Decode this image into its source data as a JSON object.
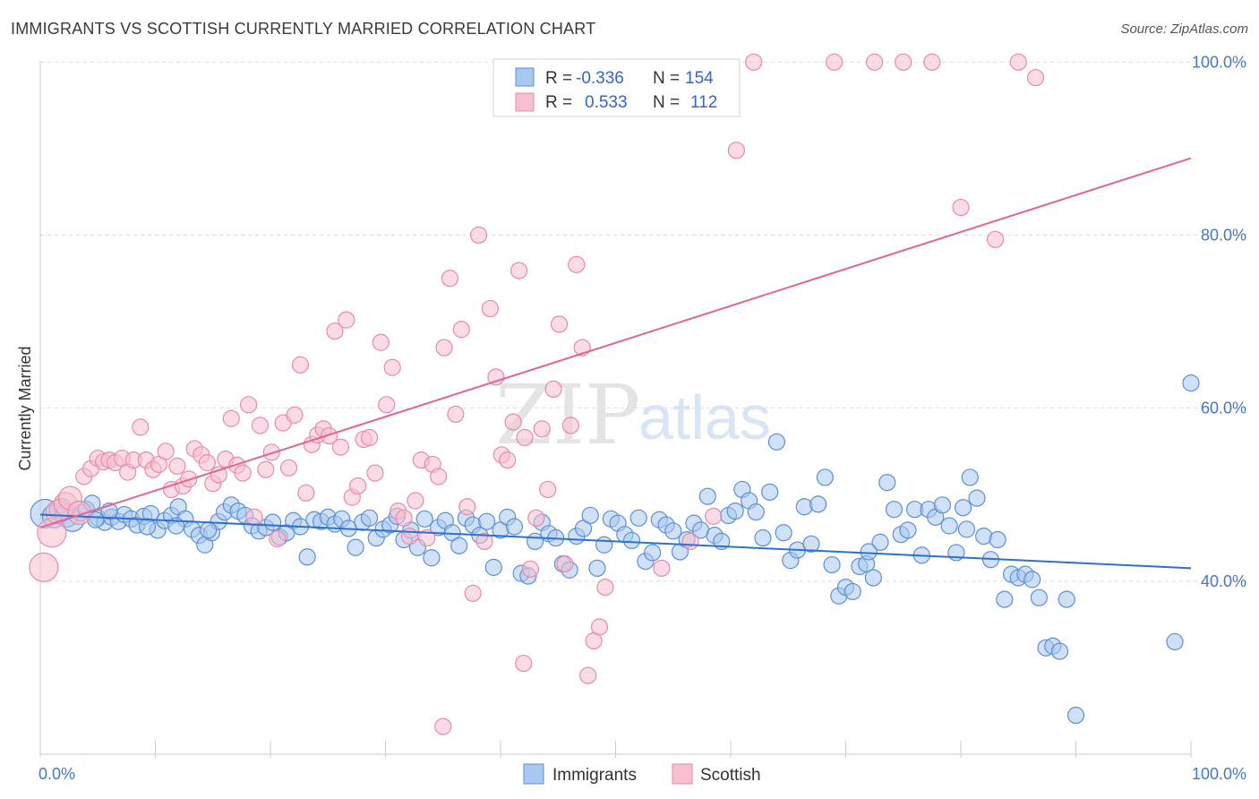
{
  "title": "IMMIGRANTS VS SCOTTISH CURRENTLY MARRIED CORRELATION CHART",
  "source": "Source: ZipAtlas.com",
  "watermark": {
    "part1": "ZIP",
    "part2": "atlas"
  },
  "colors": {
    "immigrants_fill": "#a9c8f0",
    "immigrants_stroke": "#5b8fd6",
    "immigrants_line": "#2f6fcf",
    "scottish_fill": "#f7bfd0",
    "scottish_stroke": "#e88aa8",
    "scottish_line": "#e0668e",
    "tick_label": "#4477cc",
    "grid": "#dddddd"
  },
  "legend": {
    "rows": [
      {
        "r_label": "R =",
        "r_value": "-0.336",
        "n_label": "N =",
        "n_value": "154"
      },
      {
        "r_label": "R =",
        "r_value": "0.533",
        "n_label": "N =",
        "n_value": "112"
      }
    ]
  },
  "bottom_legend": [
    "Immigrants",
    "Scottish"
  ],
  "chart_data": {
    "type": "scatter",
    "title": "IMMIGRANTS VS SCOTTISH CURRENTLY MARRIED CORRELATION CHART",
    "xlabel": "",
    "ylabel": "Currently Married",
    "xlim": [
      0,
      100
    ],
    "ylim": [
      20,
      102
    ],
    "x_tick_labels": [
      "0.0%",
      "100.0%"
    ],
    "y_ticks": [
      40,
      60,
      80,
      100
    ],
    "y_tick_labels": [
      "40.0%",
      "60.0%",
      "80.0%",
      "100.0%"
    ],
    "grid": true,
    "legend_position": "top-center",
    "series": [
      {
        "name": "Immigrants",
        "r": -0.336,
        "n": 154,
        "trend": {
          "x": [
            0,
            100
          ],
          "y": [
            47.7,
            41.5
          ]
        },
        "points": [
          [
            0.4,
            47.8
          ],
          [
            1.2,
            47.5
          ],
          [
            1.8,
            48.2
          ],
          [
            2.3,
            47.6
          ],
          [
            2.8,
            47.1
          ],
          [
            3.5,
            47.9
          ],
          [
            4.0,
            48.3
          ],
          [
            4.5,
            49.0
          ],
          [
            5.0,
            47.3
          ],
          [
            5.6,
            46.8
          ],
          [
            6.2,
            47.4
          ],
          [
            6.8,
            46.9
          ],
          [
            7.3,
            47.7
          ],
          [
            7.9,
            47.2
          ],
          [
            8.4,
            46.5
          ],
          [
            9.0,
            47.5
          ],
          [
            9.6,
            47.8
          ],
          [
            10.2,
            45.9
          ],
          [
            10.8,
            47.0
          ],
          [
            11.4,
            47.6
          ],
          [
            12.0,
            48.6
          ],
          [
            12.6,
            47.2
          ],
          [
            13.2,
            46.0
          ],
          [
            13.8,
            45.3
          ],
          [
            14.3,
            44.2
          ],
          [
            14.9,
            45.6
          ],
          [
            15.5,
            46.9
          ],
          [
            16.0,
            48.0
          ],
          [
            16.6,
            48.8
          ],
          [
            17.2,
            48.1
          ],
          [
            17.8,
            47.6
          ],
          [
            18.4,
            46.4
          ],
          [
            19.0,
            45.8
          ],
          [
            19.6,
            46.2
          ],
          [
            20.2,
            46.8
          ],
          [
            20.8,
            45.1
          ],
          [
            21.4,
            45.6
          ],
          [
            22.0,
            47.0
          ],
          [
            22.6,
            46.3
          ],
          [
            23.2,
            42.8
          ],
          [
            23.8,
            47.1
          ],
          [
            24.4,
            46.9
          ],
          [
            25.0,
            47.4
          ],
          [
            25.6,
            46.6
          ],
          [
            26.2,
            47.2
          ],
          [
            26.8,
            46.1
          ],
          [
            27.4,
            43.9
          ],
          [
            28.0,
            46.8
          ],
          [
            28.6,
            47.3
          ],
          [
            29.2,
            45.0
          ],
          [
            29.8,
            46.0
          ],
          [
            30.4,
            46.5
          ],
          [
            31.0,
            47.5
          ],
          [
            31.6,
            44.8
          ],
          [
            32.2,
            45.9
          ],
          [
            32.8,
            43.9
          ],
          [
            33.4,
            47.2
          ],
          [
            34.0,
            42.7
          ],
          [
            34.6,
            46.2
          ],
          [
            35.2,
            47.0
          ],
          [
            35.8,
            45.6
          ],
          [
            36.4,
            44.1
          ],
          [
            37.0,
            47.3
          ],
          [
            37.6,
            46.5
          ],
          [
            38.2,
            45.3
          ],
          [
            38.8,
            46.9
          ],
          [
            39.4,
            41.6
          ],
          [
            40.0,
            45.9
          ],
          [
            40.6,
            47.4
          ],
          [
            41.2,
            46.3
          ],
          [
            41.8,
            40.9
          ],
          [
            42.4,
            40.6
          ],
          [
            43.0,
            44.6
          ],
          [
            43.6,
            46.8
          ],
          [
            44.2,
            45.5
          ],
          [
            44.8,
            45.0
          ],
          [
            45.4,
            42.0
          ],
          [
            46.0,
            41.3
          ],
          [
            46.6,
            45.2
          ],
          [
            47.2,
            46.1
          ],
          [
            47.8,
            47.6
          ],
          [
            48.4,
            41.5
          ],
          [
            49.0,
            44.2
          ],
          [
            49.6,
            47.2
          ],
          [
            50.2,
            46.7
          ],
          [
            50.8,
            45.4
          ],
          [
            51.4,
            44.7
          ],
          [
            52.0,
            47.3
          ],
          [
            52.6,
            42.3
          ],
          [
            53.2,
            43.3
          ],
          [
            53.8,
            47.1
          ],
          [
            54.4,
            46.5
          ],
          [
            55.0,
            45.8
          ],
          [
            55.6,
            43.4
          ],
          [
            56.2,
            44.8
          ],
          [
            56.8,
            46.7
          ],
          [
            57.4,
            45.9
          ],
          [
            58.0,
            49.8
          ],
          [
            58.6,
            45.3
          ],
          [
            59.2,
            44.6
          ],
          [
            59.8,
            47.6
          ],
          [
            60.4,
            48.1
          ],
          [
            61.0,
            50.6
          ],
          [
            61.6,
            49.3
          ],
          [
            62.2,
            48.0
          ],
          [
            62.8,
            45.0
          ],
          [
            63.4,
            50.3
          ],
          [
            64.0,
            56.1
          ],
          [
            64.6,
            45.6
          ],
          [
            65.2,
            42.4
          ],
          [
            65.8,
            43.6
          ],
          [
            66.4,
            48.6
          ],
          [
            67.0,
            44.3
          ],
          [
            67.6,
            48.9
          ],
          [
            68.2,
            52.0
          ],
          [
            68.8,
            41.9
          ],
          [
            69.4,
            38.3
          ],
          [
            70.0,
            39.3
          ],
          [
            70.6,
            38.8
          ],
          [
            71.2,
            41.7
          ],
          [
            71.8,
            42.0
          ],
          [
            72.4,
            40.4
          ],
          [
            73.0,
            44.5
          ],
          [
            73.6,
            51.4
          ],
          [
            74.2,
            48.3
          ],
          [
            74.8,
            45.4
          ],
          [
            75.4,
            45.9
          ],
          [
            76.0,
            48.3
          ],
          [
            76.6,
            43.0
          ],
          [
            77.2,
            48.3
          ],
          [
            77.8,
            47.4
          ],
          [
            78.4,
            48.8
          ],
          [
            79.0,
            46.4
          ],
          [
            79.6,
            43.3
          ],
          [
            80.2,
            48.5
          ],
          [
            80.8,
            52.0
          ],
          [
            81.4,
            49.6
          ],
          [
            82.0,
            45.2
          ],
          [
            82.6,
            42.5
          ],
          [
            83.2,
            44.8
          ],
          [
            83.8,
            37.9
          ],
          [
            84.4,
            40.8
          ],
          [
            85.0,
            40.4
          ],
          [
            85.6,
            40.8
          ],
          [
            86.2,
            40.2
          ],
          [
            86.8,
            38.1
          ],
          [
            87.4,
            32.3
          ],
          [
            88.0,
            32.5
          ],
          [
            88.6,
            31.9
          ],
          [
            89.2,
            37.9
          ],
          [
            80.5,
            46.0
          ],
          [
            72.0,
            43.4
          ],
          [
            90.0,
            24.5
          ],
          [
            98.6,
            33.0
          ],
          [
            100.0,
            62.9
          ],
          [
            4.8,
            47.1
          ],
          [
            6.0,
            48.1
          ],
          [
            9.3,
            46.3
          ],
          [
            11.8,
            46.4
          ],
          [
            14.6,
            45.9
          ]
        ]
      },
      {
        "name": "Scottish",
        "r": 0.533,
        "n": 112,
        "trend": {
          "x": [
            0,
            100
          ],
          "y": [
            46.2,
            88.9
          ]
        },
        "points": [
          [
            0.3,
            41.6
          ],
          [
            1.0,
            45.6
          ],
          [
            1.5,
            48.0
          ],
          [
            2.2,
            48.9
          ],
          [
            2.6,
            49.6
          ],
          [
            3.4,
            47.9
          ],
          [
            3.8,
            52.1
          ],
          [
            4.4,
            53.0
          ],
          [
            5.0,
            54.2
          ],
          [
            5.5,
            53.8
          ],
          [
            6.0,
            54.0
          ],
          [
            6.5,
            53.7
          ],
          [
            7.1,
            54.2
          ],
          [
            7.6,
            52.6
          ],
          [
            8.1,
            54.0
          ],
          [
            8.7,
            57.8
          ],
          [
            9.2,
            54.0
          ],
          [
            9.8,
            52.9
          ],
          [
            10.3,
            53.5
          ],
          [
            10.9,
            55.0
          ],
          [
            11.4,
            50.6
          ],
          [
            11.9,
            53.3
          ],
          [
            12.4,
            51.0
          ],
          [
            12.9,
            51.8
          ],
          [
            13.4,
            55.3
          ],
          [
            14.0,
            54.6
          ],
          [
            14.5,
            53.7
          ],
          [
            15.0,
            51.3
          ],
          [
            15.5,
            52.3
          ],
          [
            16.1,
            54.1
          ],
          [
            16.6,
            58.8
          ],
          [
            17.1,
            53.4
          ],
          [
            17.6,
            52.5
          ],
          [
            18.1,
            60.4
          ],
          [
            18.6,
            47.4
          ],
          [
            19.1,
            58.0
          ],
          [
            19.6,
            52.9
          ],
          [
            20.1,
            54.9
          ],
          [
            20.6,
            44.9
          ],
          [
            21.1,
            58.3
          ],
          [
            21.6,
            53.1
          ],
          [
            22.1,
            59.2
          ],
          [
            22.6,
            65.0
          ],
          [
            23.1,
            50.2
          ],
          [
            23.6,
            55.8
          ],
          [
            24.1,
            56.9
          ],
          [
            24.6,
            57.6
          ],
          [
            25.1,
            56.8
          ],
          [
            25.6,
            68.9
          ],
          [
            26.1,
            55.5
          ],
          [
            26.6,
            70.2
          ],
          [
            27.1,
            49.7
          ],
          [
            27.6,
            51.0
          ],
          [
            28.1,
            56.4
          ],
          [
            28.6,
            56.6
          ],
          [
            29.1,
            52.5
          ],
          [
            29.6,
            67.6
          ],
          [
            30.1,
            60.4
          ],
          [
            30.6,
            64.7
          ],
          [
            31.1,
            48.1
          ],
          [
            31.6,
            47.3
          ],
          [
            32.1,
            45.2
          ],
          [
            32.6,
            49.3
          ],
          [
            33.1,
            54.0
          ],
          [
            33.6,
            45.0
          ],
          [
            34.1,
            53.5
          ],
          [
            34.6,
            52.1
          ],
          [
            35.1,
            67.0
          ],
          [
            35.6,
            75.0
          ],
          [
            36.1,
            59.3
          ],
          [
            36.6,
            69.1
          ],
          [
            37.1,
            48.6
          ],
          [
            37.6,
            38.6
          ],
          [
            38.1,
            80.0
          ],
          [
            38.6,
            44.6
          ],
          [
            39.1,
            71.5
          ],
          [
            39.6,
            63.6
          ],
          [
            40.1,
            54.6
          ],
          [
            40.6,
            54.0
          ],
          [
            41.1,
            58.4
          ],
          [
            41.6,
            75.9
          ],
          [
            42.1,
            56.6
          ],
          [
            42.6,
            41.4
          ],
          [
            43.1,
            47.3
          ],
          [
            43.6,
            57.6
          ],
          [
            44.1,
            50.6
          ],
          [
            44.6,
            62.2
          ],
          [
            45.1,
            69.7
          ],
          [
            45.6,
            42.0
          ],
          [
            46.1,
            58.0
          ],
          [
            46.6,
            76.6
          ],
          [
            47.1,
            67.0
          ],
          [
            47.6,
            29.1
          ],
          [
            48.1,
            33.1
          ],
          [
            48.6,
            34.7
          ],
          [
            49.1,
            39.3
          ],
          [
            54.0,
            41.5
          ],
          [
            56.5,
            44.6
          ],
          [
            58.5,
            47.5
          ],
          [
            60.5,
            89.8
          ],
          [
            62.0,
            100.0
          ],
          [
            69.0,
            100.0
          ],
          [
            72.5,
            100.0
          ],
          [
            75.0,
            100.0
          ],
          [
            77.5,
            100.0
          ],
          [
            80.0,
            83.2
          ],
          [
            83.0,
            79.5
          ],
          [
            85.0,
            100.0
          ],
          [
            86.5,
            98.2
          ],
          [
            35.0,
            23.2
          ],
          [
            52.0,
            98.1
          ],
          [
            42.0,
            30.5
          ]
        ]
      }
    ]
  }
}
